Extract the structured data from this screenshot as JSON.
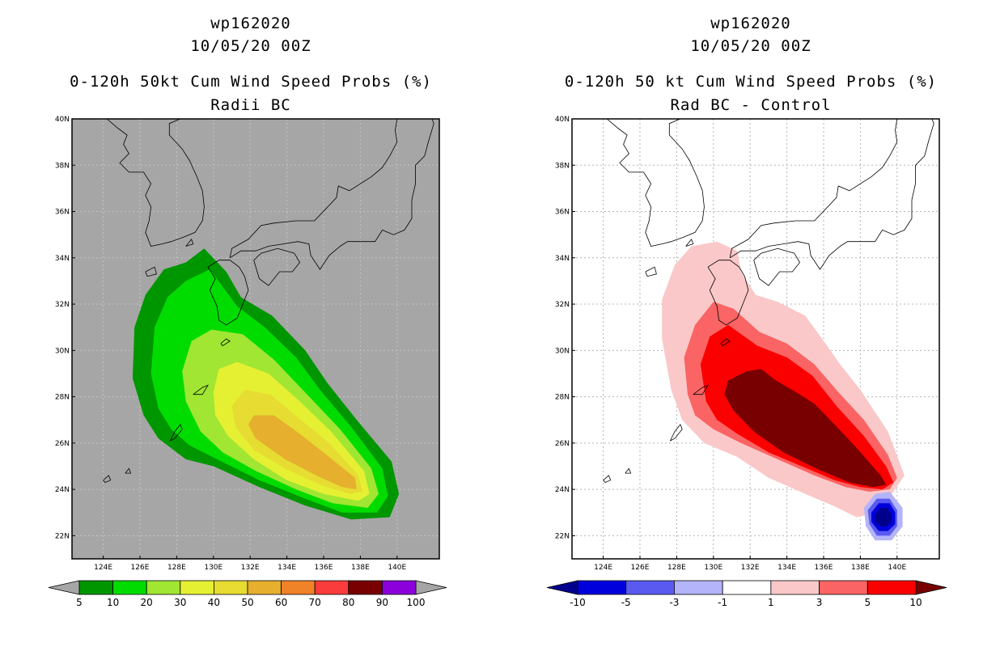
{
  "panels": [
    {
      "title_line1": "wp162020",
      "title_line2": "10/05/20 00Z",
      "title_line3": "0-120h 50kt Cum Wind Speed Probs (%)",
      "title_line4": "Radii BC"
    },
    {
      "title_line1": "wp162020",
      "title_line2": "10/05/20 00Z",
      "title_line3": "0-120h 50 kt Cum Wind Speed Probs (%)",
      "title_line4": "Rad BC - Control"
    }
  ],
  "chart_data": [
    {
      "type": "contour-map",
      "title": "0-120h 50kt Cum Wind Speed Probs (%)",
      "subtitle": "Radii BC",
      "storm": "wp162020",
      "init": "10/05/20 00Z",
      "lon_range": [
        122.3,
        142.3
      ],
      "lat_range": [
        21.0,
        40.0
      ],
      "lon_ticks": [
        "124E",
        "126E",
        "128E",
        "130E",
        "132E",
        "134E",
        "136E",
        "138E",
        "140E"
      ],
      "lon_tick_values": [
        124,
        126,
        128,
        130,
        132,
        134,
        136,
        138,
        140
      ],
      "lat_ticks": [
        "22N",
        "24N",
        "26N",
        "28N",
        "30N",
        "32N",
        "34N",
        "36N",
        "38N",
        "40N"
      ],
      "lat_tick_values": [
        22,
        24,
        26,
        28,
        30,
        32,
        34,
        36,
        38,
        40
      ],
      "background": "#a6a6a6",
      "colorbar": {
        "labels": [
          "5",
          "10",
          "20",
          "30",
          "40",
          "50",
          "60",
          "70",
          "80",
          "90",
          "100"
        ],
        "colors": [
          "#009600",
          "#00dc00",
          "#a0e632",
          "#e6f032",
          "#e6dc32",
          "#e6af2d",
          "#f08228",
          "#fa3c3c",
          "#780000",
          "#8c00dc"
        ],
        "end_colors": [
          "#a6a6a6",
          "#a6a6a6"
        ]
      },
      "contours": [
        {
          "level": "5-10",
          "color": "#009600",
          "points": [
            [
              126.2,
              27.2
            ],
            [
              125.6,
              28.8
            ],
            [
              125.7,
              31
            ],
            [
              126.3,
              32.4
            ],
            [
              127.3,
              33.5
            ],
            [
              128.5,
              33.8
            ],
            [
              129.5,
              34.4
            ],
            [
              130.7,
              33.4
            ],
            [
              131.5,
              32.3
            ],
            [
              133.2,
              31.5
            ],
            [
              135,
              30
            ],
            [
              136.2,
              28.6
            ],
            [
              137.8,
              27
            ],
            [
              139.7,
              25.2
            ],
            [
              140.1,
              23.8
            ],
            [
              139.6,
              22.8
            ],
            [
              137.5,
              22.7
            ],
            [
              135,
              23.3
            ],
            [
              132.5,
              24.1
            ],
            [
              130,
              25
            ],
            [
              128.5,
              25.3
            ],
            [
              127,
              26.2
            ]
          ]
        },
        {
          "level": "10-20",
          "color": "#00dc00",
          "points": [
            [
              127,
              27.5
            ],
            [
              126.6,
              29
            ],
            [
              126.8,
              31
            ],
            [
              127.5,
              32.3
            ],
            [
              128.5,
              33
            ],
            [
              129.8,
              33.5
            ],
            [
              131.3,
              31.9
            ],
            [
              132.8,
              31
            ],
            [
              134.5,
              29.7
            ],
            [
              135.8,
              28.3
            ],
            [
              137.5,
              26.7
            ],
            [
              139.2,
              24.9
            ],
            [
              139.5,
              23.7
            ],
            [
              138.9,
              23.0
            ],
            [
              137,
              23
            ],
            [
              135,
              23.6
            ],
            [
              132.5,
              24.4
            ],
            [
              130.2,
              25.3
            ],
            [
              128.7,
              25.9
            ],
            [
              127.7,
              26.6
            ]
          ]
        },
        {
          "level": "20-30",
          "color": "#a0e632",
          "points": [
            [
              128.5,
              27.8
            ],
            [
              128.3,
              29.1
            ],
            [
              128.8,
              30.4
            ],
            [
              129.9,
              30.9
            ],
            [
              131.6,
              30.7
            ],
            [
              133.3,
              29.6
            ],
            [
              135.1,
              28.1
            ],
            [
              136.9,
              26.6
            ],
            [
              138.6,
              24.9
            ],
            [
              139,
              23.8
            ],
            [
              138.4,
              23.2
            ],
            [
              136.5,
              23.4
            ],
            [
              134.5,
              24
            ],
            [
              132.3,
              24.8
            ],
            [
              130.5,
              25.6
            ],
            [
              129.3,
              26.5
            ]
          ]
        },
        {
          "level": "30-40",
          "color": "#e6f032",
          "points": [
            [
              130,
              28.2
            ],
            [
              130.3,
              29.2
            ],
            [
              131.3,
              29.5
            ],
            [
              133,
              29
            ],
            [
              134.7,
              27.8
            ],
            [
              136.4,
              26.5
            ],
            [
              138.2,
              24.8
            ],
            [
              138.5,
              23.8
            ],
            [
              137.9,
              23.5
            ],
            [
              136,
              23.8
            ],
            [
              134,
              24.4
            ],
            [
              132.2,
              25.3
            ],
            [
              130.8,
              26.3
            ],
            [
              130.1,
              27.2
            ]
          ]
        },
        {
          "level": "40-50",
          "color": "#e6dc32",
          "points": [
            [
              131,
              27.6
            ],
            [
              131.7,
              28.3
            ],
            [
              133.1,
              28.1
            ],
            [
              134.6,
              27.1
            ],
            [
              136.3,
              26
            ],
            [
              137.9,
              24.6
            ],
            [
              138.1,
              23.9
            ],
            [
              137.4,
              23.8
            ],
            [
              135.8,
              24.2
            ],
            [
              133.9,
              24.9
            ],
            [
              132.2,
              25.7
            ],
            [
              131.2,
              26.7
            ]
          ]
        },
        {
          "level": "50-60",
          "color": "#e6af2d",
          "points": [
            [
              132.2,
              27.2
            ],
            [
              133.3,
              27.2
            ],
            [
              134.7,
              26.4
            ],
            [
              136.3,
              25.4
            ],
            [
              137.7,
              24.5
            ],
            [
              137.8,
              24
            ],
            [
              137,
              24.1
            ],
            [
              135.6,
              24.6
            ],
            [
              133.9,
              25.3
            ],
            [
              132.3,
              26.2
            ],
            [
              131.9,
              26.8
            ]
          ]
        }
      ]
    },
    {
      "type": "contour-map",
      "title": "0-120h 50 kt Cum Wind Speed Probs (%)",
      "subtitle": "Rad BC - Control",
      "storm": "wp162020",
      "init": "10/05/20 00Z",
      "lon_range": [
        122.3,
        142.3
      ],
      "lat_range": [
        21.0,
        40.0
      ],
      "lon_ticks": [
        "124E",
        "126E",
        "128E",
        "130E",
        "132E",
        "134E",
        "136E",
        "138E",
        "140E"
      ],
      "lon_tick_values": [
        124,
        126,
        128,
        130,
        132,
        134,
        136,
        138,
        140
      ],
      "lat_ticks": [
        "22N",
        "24N",
        "26N",
        "28N",
        "30N",
        "32N",
        "34N",
        "36N",
        "38N",
        "40N"
      ],
      "lat_tick_values": [
        22,
        24,
        26,
        28,
        30,
        32,
        34,
        36,
        38,
        40
      ],
      "background": "#ffffff",
      "grid": true,
      "colorbar": {
        "labels": [
          "-10",
          "-5",
          "-3",
          "-1",
          "1",
          "3",
          "5",
          "10"
        ],
        "colors": [
          "#0000dc",
          "#5a5af0",
          "#b4b4fa",
          "#ffffff",
          "#fac8c8",
          "#fa6464",
          "#fa0000"
        ],
        "end_colors": [
          "#00008c",
          "#780000"
        ]
      },
      "contours": [
        {
          "level": "1-3",
          "color": "#fac8c8",
          "points": [
            [
              127.2,
              30.5
            ],
            [
              127.2,
              32.2
            ],
            [
              127.9,
              33.7
            ],
            [
              128.8,
              34.5
            ],
            [
              130.2,
              34.7
            ],
            [
              131.3,
              34.3
            ],
            [
              131.5,
              33.4
            ],
            [
              132.3,
              32.4
            ],
            [
              133.5,
              32.1
            ],
            [
              135,
              31.5
            ],
            [
              136.1,
              30.3
            ],
            [
              136.9,
              29.4
            ],
            [
              138,
              28.3
            ],
            [
              139.5,
              26.5
            ],
            [
              140.4,
              24.6
            ],
            [
              139.8,
              23.9
            ],
            [
              139,
              23
            ],
            [
              137.8,
              22.8
            ],
            [
              136.5,
              23.3
            ],
            [
              135,
              23.8
            ],
            [
              133,
              24.5
            ],
            [
              131.3,
              25.4
            ],
            [
              129.5,
              26
            ],
            [
              128.3,
              27
            ],
            [
              127.7,
              28.3
            ]
          ]
        },
        {
          "level": "3-5",
          "color": "#fa6464",
          "points": [
            [
              128.6,
              28.1
            ],
            [
              128.4,
              29.7
            ],
            [
              129,
              31.1
            ],
            [
              130,
              32.1
            ],
            [
              131.1,
              31.8
            ],
            [
              132.5,
              30.8
            ],
            [
              134,
              30.3
            ],
            [
              135.5,
              29.4
            ],
            [
              136.8,
              28.2
            ],
            [
              138.2,
              27
            ],
            [
              139.5,
              25.5
            ],
            [
              140,
              24.5
            ],
            [
              139.6,
              24
            ],
            [
              138.5,
              23.9
            ],
            [
              137.2,
              24.1
            ],
            [
              135.5,
              24.6
            ],
            [
              133.5,
              25.3
            ],
            [
              131.5,
              26
            ],
            [
              130,
              26.6
            ],
            [
              129,
              27.2
            ]
          ]
        },
        {
          "level": "5-10",
          "color": "#fa0000",
          "points": [
            [
              129.6,
              27.8
            ],
            [
              129.3,
              29.4
            ],
            [
              129.8,
              30.6
            ],
            [
              130.8,
              31.1
            ],
            [
              132.4,
              30.2
            ],
            [
              134,
              29.7
            ],
            [
              135.4,
              28.9
            ],
            [
              136.7,
              27.6
            ],
            [
              138.2,
              26.3
            ],
            [
              139.4,
              25
            ],
            [
              139.8,
              24.3
            ],
            [
              139.2,
              24
            ],
            [
              138,
              24.1
            ],
            [
              136.6,
              24.4
            ],
            [
              134.8,
              25
            ],
            [
              133,
              25.6
            ],
            [
              131.3,
              26.4
            ],
            [
              130.2,
              27
            ]
          ]
        },
        {
          "level": ">10",
          "color": "#780000",
          "points": [
            [
              130.8,
              28.7
            ],
            [
              131.8,
              29.1
            ],
            [
              132.6,
              29.2
            ],
            [
              133.4,
              28.7
            ],
            [
              134.5,
              28.2
            ],
            [
              135.5,
              27.7
            ],
            [
              136.6,
              26.8
            ],
            [
              137.9,
              25.7
            ],
            [
              139.1,
              24.6
            ],
            [
              139.4,
              24.2
            ],
            [
              138.7,
              24.1
            ],
            [
              137.4,
              24.3
            ],
            [
              135.6,
              24.9
            ],
            [
              133.8,
              25.6
            ],
            [
              132.2,
              26.5
            ],
            [
              131.1,
              27.4
            ],
            [
              130.6,
              28.1
            ]
          ]
        },
        {
          "level": "-3 to -1",
          "color": "#b4b4fa",
          "points": [
            [
              138.2,
              23.2
            ],
            [
              138.8,
              23.8
            ],
            [
              139.6,
              23.9
            ],
            [
              140.3,
              23.2
            ],
            [
              140.3,
              22.4
            ],
            [
              139.7,
              21.8
            ],
            [
              138.8,
              21.8
            ],
            [
              138.3,
              22.4
            ]
          ]
        },
        {
          "level": "-5 to -3",
          "color": "#5a5af0",
          "points": [
            [
              138.4,
              23.1
            ],
            [
              138.9,
              23.6
            ],
            [
              139.6,
              23.6
            ],
            [
              140,
              23.1
            ],
            [
              140,
              22.4
            ],
            [
              139.6,
              22
            ],
            [
              138.9,
              22
            ],
            [
              138.5,
              22.5
            ]
          ]
        },
        {
          "level": "-10 to -5",
          "color": "#0000dc",
          "points": [
            [
              138.6,
              23
            ],
            [
              139,
              23.4
            ],
            [
              139.6,
              23.4
            ],
            [
              139.9,
              23
            ],
            [
              139.9,
              22.5
            ],
            [
              139.5,
              22.2
            ],
            [
              139,
              22.2
            ],
            [
              138.6,
              22.6
            ]
          ]
        },
        {
          "level": "<-10",
          "color": "#00008c",
          "points": [
            [
              138.8,
              22.9
            ],
            [
              139.1,
              23.2
            ],
            [
              139.5,
              23.2
            ],
            [
              139.7,
              22.9
            ],
            [
              139.7,
              22.6
            ],
            [
              139.4,
              22.4
            ],
            [
              139.1,
              22.4
            ],
            [
              138.8,
              22.6
            ]
          ]
        }
      ]
    }
  ]
}
